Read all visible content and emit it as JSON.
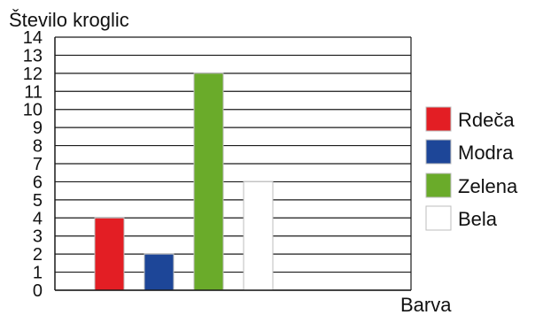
{
  "chart_data": {
    "type": "bar",
    "ylabel": "Število kroglic",
    "xlabel": "Barva",
    "ylim": [
      0,
      14
    ],
    "yticks": [
      0,
      1,
      2,
      3,
      4,
      5,
      6,
      7,
      8,
      9,
      10,
      11,
      12,
      13,
      14
    ],
    "ytick_labels": [
      "0",
      "1",
      "2",
      "3",
      "4",
      "5",
      "6",
      "7",
      "8",
      "9",
      "10",
      "11",
      "12",
      "13",
      "14"
    ],
    "grid": true,
    "legend_position": "right",
    "categories": [
      "Rdeča",
      "Modra",
      "Zelena",
      "Bela"
    ],
    "values": [
      4,
      2,
      12,
      6
    ],
    "colors": [
      "#e31e24",
      "#1d4698",
      "#6aab2a",
      "#ffffff"
    ]
  }
}
